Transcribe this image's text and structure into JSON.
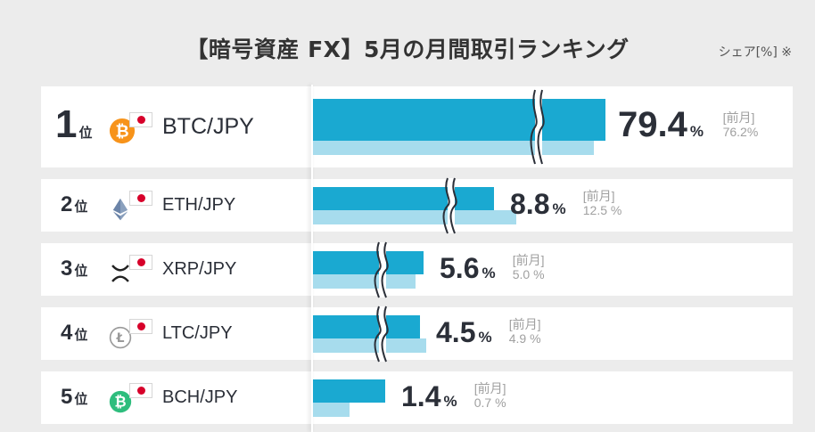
{
  "title": "【暗号資産 FX】5月の月間取引ランキング",
  "unit_note": "シェア[%] ※",
  "prev_label": "[前月]",
  "rank_suffix": "位",
  "percent_symbol": "%",
  "colors": {
    "current": "#1aa9d1",
    "previous": "#a7dced",
    "flag_red": "#d7002a"
  },
  "chart_data": {
    "type": "bar",
    "orientation": "horizontal",
    "title": "【暗号資産 FX】5月の月間取引ランキング",
    "unit": "シェア[%]",
    "axis_breaks": true,
    "categories": [
      "BTC/JPY",
      "ETH/JPY",
      "XRP/JPY",
      "LTC/JPY",
      "BCH/JPY"
    ],
    "ranks": [
      "1",
      "2",
      "3",
      "4",
      "5"
    ],
    "current_labels": [
      "79.4",
      "8.8",
      "5.6",
      "4.5",
      "1.4"
    ],
    "previous_labels": [
      "76.2%",
      "12.5 %",
      "5.0 %",
      "4.9 %",
      "0.7 %"
    ],
    "icons": [
      "bitcoin-icon",
      "ethereum-icon",
      "xrp-icon",
      "litecoin-icon",
      "bitcoin-cash-icon"
    ],
    "series": [
      {
        "values": [
          79.4,
          8.8,
          5.6,
          4.5,
          1.4
        ]
      },
      {
        "values": [
          76.2,
          12.5,
          5.0,
          4.9,
          0.7
        ]
      }
    ]
  }
}
